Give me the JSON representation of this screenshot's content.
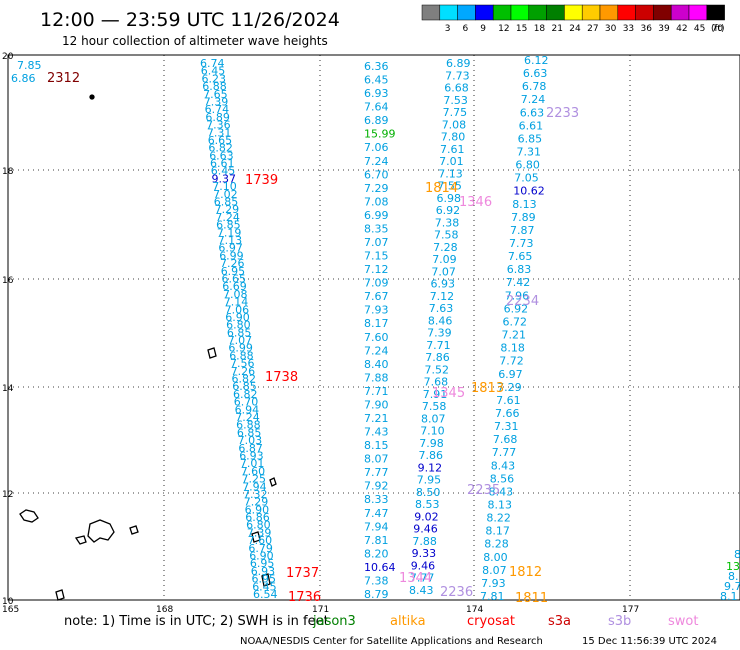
{
  "title": "12:00 — 23:59 UTC 11/26/2024",
  "subtitle": "12 hour collection of altimeter wave heights",
  "colorbar": {
    "unit_label": "(ft)",
    "bins": [
      {
        "color": "#7f7f7f",
        "label": ""
      },
      {
        "color": "#00dfff",
        "label": "3"
      },
      {
        "color": "#00a8ff",
        "label": "6"
      },
      {
        "color": "#0000ff",
        "label": "9"
      },
      {
        "color": "#00bf00",
        "label": "12"
      },
      {
        "color": "#00ff00",
        "label": "15"
      },
      {
        "color": "#00a000",
        "label": "18"
      },
      {
        "color": "#007f00",
        "label": "21"
      },
      {
        "color": "#ffff00",
        "label": "24"
      },
      {
        "color": "#ffcc00",
        "label": "27"
      },
      {
        "color": "#ff9900",
        "label": "30"
      },
      {
        "color": "#ff0000",
        "label": "33"
      },
      {
        "color": "#cc0000",
        "label": "36"
      },
      {
        "color": "#800000",
        "label": "39"
      },
      {
        "color": "#cc00cc",
        "label": "42"
      },
      {
        "color": "#ff00ff",
        "label": "45"
      },
      {
        "color": "#000000",
        "label": "70"
      }
    ]
  },
  "axes": {
    "lon_ticks": [
      "165",
      "168",
      "171",
      "174",
      "177"
    ],
    "lat_ticks": [
      "20",
      "18",
      "16",
      "14",
      "12",
      "10"
    ]
  },
  "colors": {
    "sat_label": "#dd0000",
    "sat_label_dark": "#800000",
    "default_value": "#00a0e0",
    "coast": "#000000",
    "grid": "#000000"
  },
  "track_labels": [
    {
      "text": "2312",
      "color": "#800000"
    },
    {
      "text": "1739",
      "color": "#ff0000"
    },
    {
      "text": "1738",
      "color": "#ff0000"
    },
    {
      "text": "1737",
      "color": "#ff0000"
    },
    {
      "text": "1736",
      "color": "#ff0000"
    },
    {
      "text": "2233",
      "color": "#b090e0"
    },
    {
      "text": "1814",
      "color": "#ff9900"
    },
    {
      "text": "1346",
      "color": "#ee88dd"
    },
    {
      "text": "2234",
      "color": "#b090e0"
    },
    {
      "text": "1813",
      "color": "#ff9900"
    },
    {
      "text": "1345",
      "color": "#ee88dd"
    },
    {
      "text": "2235",
      "color": "#b090e0"
    },
    {
      "text": "1812",
      "color": "#ff9900"
    },
    {
      "text": "1811",
      "color": "#ff9900"
    },
    {
      "text": "1344",
      "color": "#ee88dd"
    },
    {
      "text": "2236",
      "color": "#b090e0"
    }
  ],
  "tracks": {
    "corner": [
      "7.85",
      "6.86"
    ],
    "track_a": [
      "6.74",
      "6.45",
      "6.23",
      "6.88",
      "7.65",
      "7.39",
      "6.74",
      "6.89",
      "7.36",
      "7.31",
      "6.65",
      "6.82",
      "6.63",
      "6.61",
      "6.45",
      "9.37",
      "7.10",
      "7.02",
      "6.85",
      "7.29",
      "7.24",
      "6.85",
      "7.19",
      "7.13",
      "6.97",
      "6.99",
      "7.26",
      "6.95",
      "6.65",
      "6.69",
      "7.08",
      "7.14",
      "7.06",
      "6.90",
      "6.80",
      "6.85",
      "7.07",
      "6.99",
      "6.88",
      "7.56",
      "7.26",
      "6.82",
      "6.85",
      "6.82",
      "6.70",
      "6.94",
      "7.24",
      "6.88",
      "6.85",
      "7.03",
      "6.87",
      "6.93",
      "7.01",
      "7.60",
      "7.25",
      "7.94",
      "7.32",
      "7.29",
      "6.90",
      "6.86",
      "6.80",
      "7.39",
      "7.60",
      "6.79",
      "6.90",
      "6.95",
      "6.93",
      "6.95",
      "6.45",
      "6.54"
    ],
    "track_b": [
      "6.36",
      "6.45",
      "6.93",
      "7.64",
      "6.89",
      "15.99",
      "7.06",
      "7.24",
      "6.70",
      "7.29",
      "7.08",
      "6.99",
      "8.35",
      "7.07",
      "7.15",
      "7.12",
      "7.09",
      "7.67",
      "7.93",
      "8.17",
      "7.60",
      "7.24",
      "8.40",
      "7.88",
      "7.71",
      "7.90",
      "7.21",
      "7.43",
      "8.15",
      "8.07",
      "7.77",
      "7.92",
      "8.33",
      "7.47",
      "7.94",
      "7.81",
      "8.20",
      "10.64",
      "7.38",
      "8.79"
    ],
    "track_b_colors": {
      "15.99": "#00b000",
      "10.64": "#0000cc",
      "9.12": "#0000cc",
      "9.02": "#0000cc",
      "9.46": "#0000cc",
      "9.33": "#0000cc",
      "10.62": "#0000cc",
      "9.37": "#0000cc"
    },
    "track_c": [
      "6.89",
      "7.73",
      "6.68",
      "7.53",
      "7.75",
      "7.08",
      "7.80",
      "7.61",
      "7.01",
      "7.13",
      "7.55",
      "6.98",
      "6.92",
      "7.38",
      "7.58",
      "7.28",
      "7.09",
      "7.07",
      "6.93",
      "7.12",
      "7.63",
      "8.46",
      "7.39",
      "7.71",
      "7.86",
      "7.52",
      "7.68",
      "7.91",
      "7.58",
      "8.07",
      "7.10",
      "7.98",
      "7.86",
      "9.12",
      "7.95",
      "8.50",
      "8.53",
      "9.02",
      "9.46",
      "7.88",
      "9.33",
      "9.46",
      "7.77",
      "8.43"
    ],
    "track_d": [
      "6.12",
      "6.63",
      "6.78",
      "7.24",
      "6.63",
      "6.61",
      "6.85",
      "7.31",
      "6.80",
      "7.05",
      "10.62",
      "8.13",
      "7.89",
      "7.87",
      "7.73",
      "7.65",
      "6.83",
      "7.42",
      "7.96",
      "6.92",
      "6.72",
      "7.21",
      "8.18",
      "7.72",
      "6.97",
      "7.29",
      "7.61",
      "7.66",
      "7.31",
      "7.68",
      "7.77",
      "8.43",
      "8.56",
      "8.43",
      "8.13",
      "8.22",
      "8.17",
      "8.28",
      "8.00",
      "8.07",
      "7.93",
      "7.81"
    ],
    "right_edge": [
      "8",
      "13",
      "8.",
      "9.7",
      "8.1"
    ]
  },
  "legend": {
    "note": "note: 1) Time is in UTC; 2) SWH is in feet",
    "items": [
      {
        "label": "jason3",
        "color": "#007f00"
      },
      {
        "label": "altika",
        "color": "#ff9900"
      },
      {
        "label": "cryosat",
        "color": "#ff0000"
      },
      {
        "label": "s3a",
        "color": "#cc0000"
      },
      {
        "label": "s3b",
        "color": "#b090e0"
      },
      {
        "label": "swot",
        "color": "#ee88dd"
      }
    ]
  },
  "footer": {
    "org": "NOAA/NESDIS Center for Satellite Applications and Research",
    "timestamp": "15 Dec 11:56:39 UTC 2024"
  }
}
